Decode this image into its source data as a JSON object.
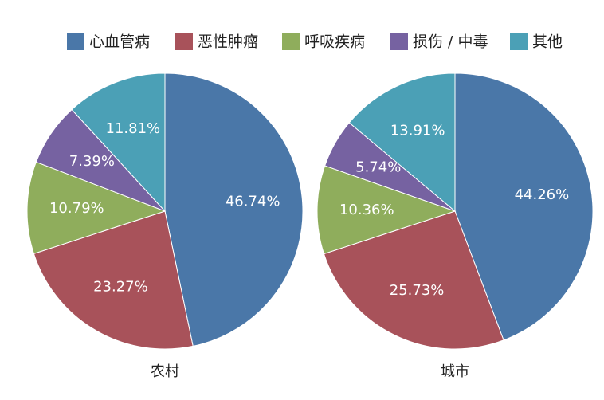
{
  "chart_data": [
    {
      "type": "pie",
      "title": "农村",
      "categories": [
        "心血管病",
        "恶性肿瘤",
        "呼吸疾病",
        "损伤 / 中毒",
        "其他"
      ],
      "colors": [
        "#4a77a8",
        "#a8525a",
        "#8fad5c",
        "#7662a1",
        "#4ba0b6"
      ],
      "values": [
        46.74,
        23.27,
        10.79,
        7.39,
        11.81
      ],
      "value_labels": [
        "46.74%",
        "23.27%",
        "10.79%",
        "7.39%",
        "11.81%"
      ]
    },
    {
      "type": "pie",
      "title": "城市",
      "values": [
        44.26,
        25.73,
        10.36,
        5.74,
        13.91
      ],
      "value_labels": [
        "44.26%",
        "25.73%",
        "10.36%",
        "5.74%",
        "13.91%"
      ]
    }
  ]
}
